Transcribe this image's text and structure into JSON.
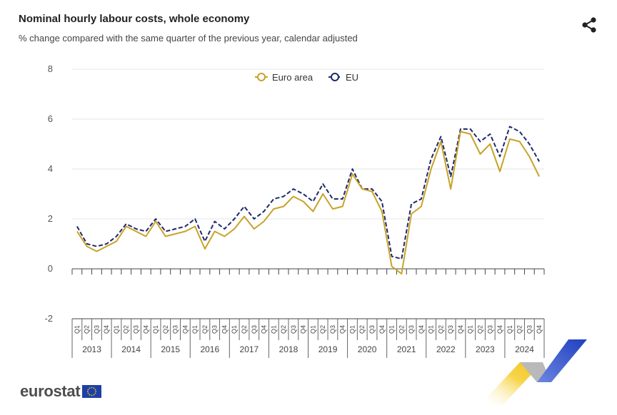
{
  "header": {
    "title": "Nominal hourly labour costs, whole economy",
    "subtitle": "% change compared with the same quarter of the previous year, calendar adjusted",
    "share_icon": "share-icon"
  },
  "footer": {
    "logo_text": "eurostat",
    "flag_icon": "eu-flag-icon"
  },
  "colors": {
    "euro_area": "#C9A227",
    "eu": "#1E2A6B",
    "grid": "#e5e5e5",
    "axis": "#444444"
  },
  "chart_data": {
    "type": "line",
    "title": "Nominal hourly labour costs, whole economy",
    "subtitle": "% change compared with the same quarter of the previous year, calendar adjusted",
    "xlabel": "",
    "ylabel": "",
    "ylim": [
      -2,
      8
    ],
    "yticks": [
      -2,
      0,
      2,
      4,
      6,
      8
    ],
    "grid": true,
    "legend_position": "top",
    "quarters": [
      "Q1",
      "Q2",
      "Q3",
      "Q4"
    ],
    "years": [
      "2013",
      "2014",
      "2015",
      "2016",
      "2017",
      "2018",
      "2019",
      "2020",
      "2021",
      "2022",
      "2023",
      "2024"
    ],
    "series": [
      {
        "name": "Euro area",
        "style": "solid",
        "values": [
          1.5,
          0.9,
          0.7,
          0.9,
          1.1,
          1.7,
          1.5,
          1.3,
          1.9,
          1.3,
          1.4,
          1.5,
          1.7,
          0.8,
          1.5,
          1.3,
          1.6,
          2.1,
          1.6,
          1.9,
          2.4,
          2.5,
          2.9,
          2.7,
          2.3,
          3.0,
          2.4,
          2.5,
          3.8,
          3.2,
          3.1,
          2.3,
          0.1,
          -0.2,
          2.2,
          2.5,
          4.0,
          5.1,
          3.2,
          5.5,
          5.4,
          4.6,
          5.0,
          3.9,
          5.2,
          5.1,
          4.5,
          3.7
        ]
      },
      {
        "name": "EU",
        "style": "dashed",
        "values": [
          1.7,
          1.0,
          0.9,
          1.0,
          1.3,
          1.8,
          1.6,
          1.5,
          2.0,
          1.5,
          1.6,
          1.7,
          2.0,
          1.1,
          1.9,
          1.6,
          2.0,
          2.5,
          2.0,
          2.3,
          2.8,
          2.9,
          3.2,
          3.0,
          2.7,
          3.4,
          2.8,
          2.8,
          4.0,
          3.2,
          3.2,
          2.7,
          0.5,
          0.4,
          2.6,
          2.8,
          4.4,
          5.3,
          3.7,
          5.6,
          5.6,
          5.1,
          5.4,
          4.5,
          5.7,
          5.5,
          5.0,
          4.3
        ]
      }
    ]
  }
}
